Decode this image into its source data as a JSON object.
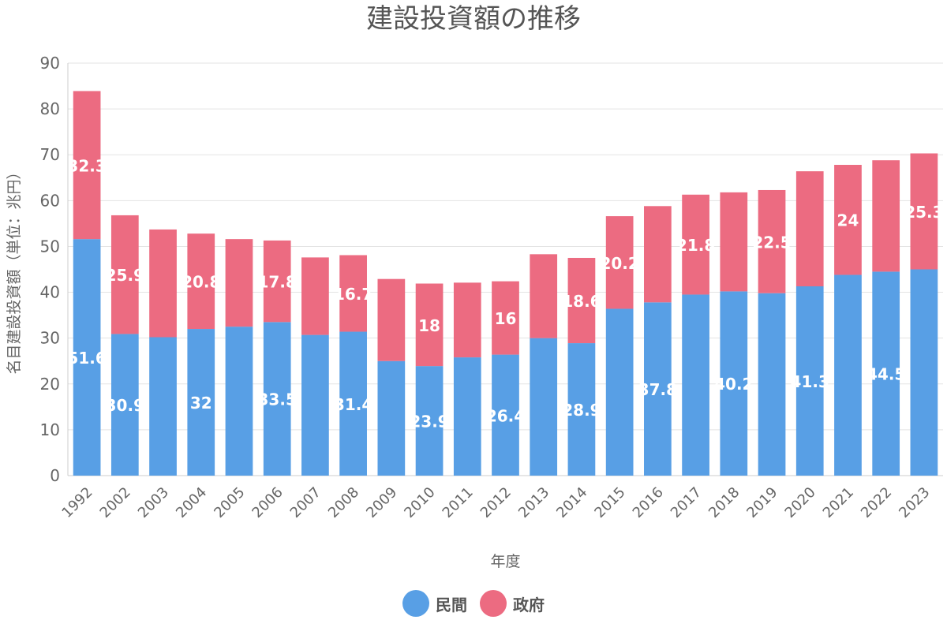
{
  "chart_data": {
    "type": "bar",
    "stacked": true,
    "title": "建設投資額の推移",
    "xlabel": "年度",
    "ylabel": "名目建設投資額（単位：兆円）",
    "ylim": [
      0,
      90
    ],
    "yticks": [
      0,
      10,
      20,
      30,
      40,
      50,
      60,
      70,
      80,
      90
    ],
    "grid": true,
    "legend_position": "bottom",
    "categories": [
      "1992",
      "2002",
      "2003",
      "2004",
      "2005",
      "2006",
      "2007",
      "2008",
      "2009",
      "2010",
      "2011",
      "2012",
      "2013",
      "2014",
      "2015",
      "2016",
      "2017",
      "2018",
      "2019",
      "2020",
      "2021",
      "2022",
      "2023"
    ],
    "series": [
      {
        "name": "民間",
        "color": "#589fe5",
        "values": [
          51.6,
          30.9,
          30.2,
          32,
          32.5,
          33.5,
          30.7,
          31.4,
          25.0,
          23.9,
          25.8,
          26.4,
          30.0,
          28.9,
          36.4,
          37.8,
          39.5,
          40.2,
          39.8,
          41.3,
          43.8,
          44.5,
          45.0
        ],
        "labels": [
          "51.6",
          "30.9",
          "",
          "32",
          "",
          "33.5",
          "",
          "31.4",
          "",
          "23.9",
          "",
          "26.4",
          "",
          "28.9",
          "",
          "37.8",
          "",
          "40.2",
          "",
          "41.3",
          "",
          "44.5",
          ""
        ]
      },
      {
        "name": "政府",
        "color": "#ec6b81",
        "values": [
          32.3,
          25.9,
          23.5,
          20.8,
          19.1,
          17.8,
          16.9,
          16.7,
          17.9,
          18,
          16.3,
          16,
          18.3,
          18.6,
          20.2,
          21.0,
          21.8,
          21.6,
          22.5,
          25.1,
          24,
          24.3,
          25.3
        ],
        "labels": [
          "32.3",
          "25.9",
          "",
          "20.8",
          "",
          "17.8",
          "",
          "16.7",
          "",
          "18",
          "",
          "16",
          "",
          "18.6",
          "20.2",
          "",
          "21.8",
          "",
          "22.5",
          "",
          "24",
          "",
          "25.3"
        ]
      }
    ]
  }
}
